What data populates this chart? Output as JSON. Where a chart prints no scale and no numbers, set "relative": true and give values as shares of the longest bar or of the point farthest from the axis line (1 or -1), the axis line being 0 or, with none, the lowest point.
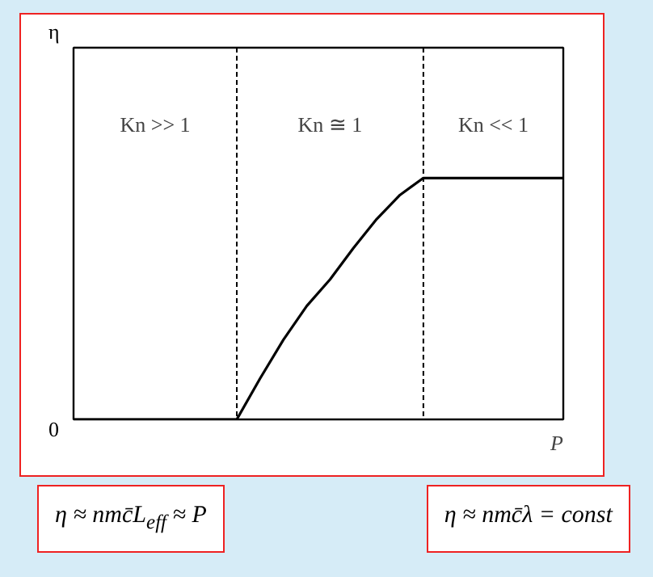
{
  "chart_data": {
    "type": "line",
    "relative": true,
    "xlabel": "P",
    "color": "#000000",
    "categories": [
      null,
      null,
      null,
      null,
      null,
      null,
      null,
      null,
      null,
      null,
      null,
      null,
      null,
      null,
      null,
      null,
      null,
      null,
      null,
      null,
      null,
      null
    ],
    "values": [
      0,
      0,
      0,
      0,
      0,
      0,
      0,
      0,
      0.17,
      0.33,
      0.47,
      0.58,
      0.71,
      0.83,
      0.93,
      1,
      1,
      1,
      1,
      1,
      1,
      1
    ],
    "annotations": [
      "Kn >> 1",
      "Kn ≅ 1",
      "Kn << 1",
      "η",
      "0",
      "η ≈ nmc̄L$_{eff}$ ≈ P",
      "η ≈ nmc̄λ = const"
    ]
  }
}
